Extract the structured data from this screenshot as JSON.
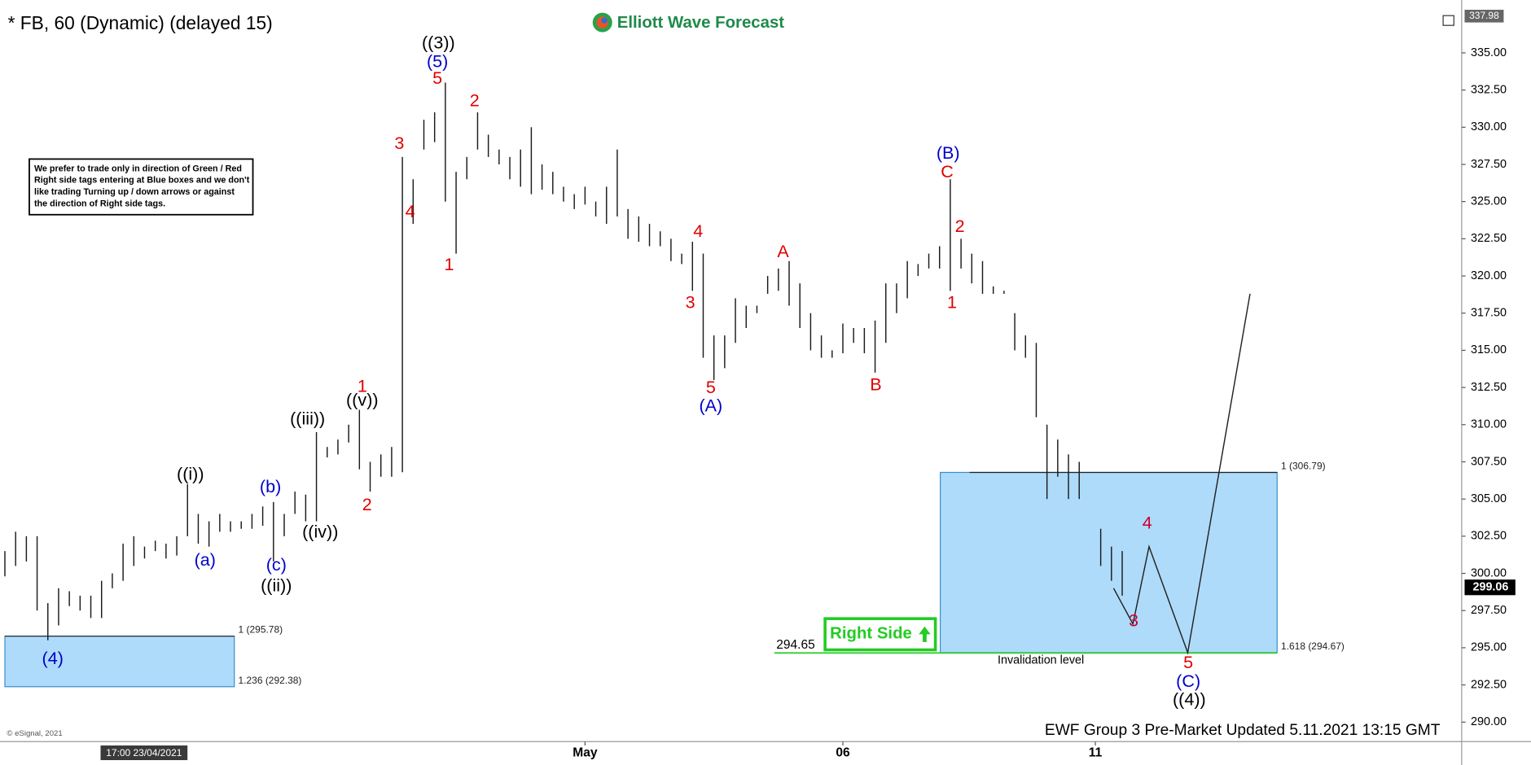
{
  "chart_data": {
    "type": "ohlc",
    "title": "* FB, 60 (Dynamic) (delayed 15)",
    "brand": "Elliott Wave Forecast",
    "footer": "EWF Group 3 Pre-Market Updated 5.11.2021 13:15 GMT",
    "copyright": "© eSignal, 2021",
    "cursor_time": "17:00 23/04/2021",
    "note": [
      "We prefer to trade only in direction of Green / Red",
      "Right side tags entering at Blue boxes and we don't",
      "like trading Turning up / down arrows or against",
      "the direction of Right side tags."
    ],
    "right_side_tag": "Right Side",
    "last_price": 299.06,
    "scale_high": 337.98,
    "bar_color": "#1a1a1a",
    "ylim": [
      288.69,
      338.03
    ],
    "yticks": [
      {
        "value": 290,
        "label": "290.00"
      },
      {
        "value": 292.5,
        "label": "292.50"
      },
      {
        "value": 295,
        "label": "295.00"
      },
      {
        "value": 297.5,
        "label": "297.50"
      },
      {
        "value": 300,
        "label": "300.00"
      },
      {
        "value": 302.5,
        "label": "302.50"
      },
      {
        "value": 305,
        "label": "305.00"
      },
      {
        "value": 307.5,
        "label": "307.50"
      },
      {
        "value": 310,
        "label": "310.00"
      },
      {
        "value": 312.5,
        "label": "312.50"
      },
      {
        "value": 315,
        "label": "315.00"
      },
      {
        "value": 317.5,
        "label": "317.50"
      },
      {
        "value": 320,
        "label": "320.00"
      },
      {
        "value": 322.5,
        "label": "322.50"
      },
      {
        "value": 325,
        "label": "325.00"
      },
      {
        "value": 327.5,
        "label": "327.50"
      },
      {
        "value": 330,
        "label": "330.00"
      },
      {
        "value": 332.5,
        "label": "332.50"
      },
      {
        "value": 335,
        "label": "335.00"
      }
    ],
    "xlim": [
      0,
      135.6
    ],
    "xticks": [
      {
        "value": 54,
        "label": "May"
      },
      {
        "value": 78,
        "label": "06"
      },
      {
        "value": 101.5,
        "label": "11"
      }
    ],
    "x": [
      0,
      1,
      2,
      3,
      4,
      5,
      6,
      7,
      8,
      9,
      10,
      11,
      12,
      13,
      14,
      15,
      16,
      17,
      18,
      19,
      20,
      21,
      22,
      23,
      24,
      25,
      26,
      27,
      28,
      29,
      30,
      31,
      32,
      33,
      34,
      35,
      36,
      37,
      38,
      39,
      40,
      41,
      42,
      43,
      44,
      45,
      46,
      47,
      48,
      49,
      50,
      51,
      52,
      53,
      54,
      55,
      56,
      57,
      58,
      59,
      60,
      61,
      62,
      63,
      64,
      65,
      66,
      67,
      68,
      69,
      70,
      71,
      72,
      73,
      74,
      75,
      76,
      77,
      78,
      79,
      80,
      81,
      82,
      83,
      84,
      85,
      86,
      87,
      88,
      89,
      90,
      91,
      92,
      93,
      94,
      95,
      96,
      97,
      98,
      99,
      100,
      102,
      103,
      104
    ],
    "high": [
      301.5,
      302.8,
      302.5,
      302.5,
      298,
      299,
      298.8,
      298.5,
      298.5,
      299.5,
      300,
      302,
      302.5,
      301.8,
      302.2,
      302,
      302.5,
      306,
      304,
      303.5,
      304,
      303.5,
      303.5,
      304,
      304.5,
      304.8,
      304,
      305.5,
      305.3,
      309.5,
      308.5,
      309,
      310,
      311,
      307.5,
      308,
      308.5,
      328,
      326.5,
      330.5,
      331,
      333,
      327,
      328,
      331,
      329.5,
      328.5,
      328,
      328.5,
      330,
      327.5,
      327,
      326,
      325.5,
      326,
      325,
      326,
      328.5,
      324.5,
      324,
      323.5,
      323,
      322.5,
      321.5,
      322.3,
      321.5,
      316,
      316,
      318.5,
      318,
      318,
      320,
      320.5,
      321,
      319.5,
      317.5,
      316,
      315,
      316.8,
      316.5,
      316.5,
      317,
      319.5,
      319.5,
      321,
      320.8,
      321.5,
      322,
      326.5,
      322.5,
      321.5,
      321,
      319.3,
      319,
      317.5,
      316,
      315.5,
      310,
      309,
      308,
      307.5,
      303,
      301.8,
      301.5
    ],
    "low": [
      299.8,
      300.5,
      300.8,
      297.5,
      295.5,
      296.5,
      297.8,
      297.5,
      297,
      297,
      299,
      299.5,
      300.5,
      301,
      301.5,
      301,
      301.2,
      302.5,
      302,
      301.8,
      302.8,
      302.8,
      303,
      303,
      303.2,
      300.8,
      302.5,
      304,
      303.5,
      303.5,
      307.8,
      308,
      308.8,
      307,
      305.5,
      306.5,
      306.5,
      306.8,
      323.5,
      328.5,
      329,
      325,
      321.5,
      326.5,
      328.5,
      328,
      327.5,
      326.5,
      326,
      325.5,
      325.8,
      325.5,
      325,
      324.5,
      324.8,
      324,
      323.5,
      324,
      322.5,
      322.3,
      322,
      322,
      321,
      320.8,
      319,
      314.5,
      313,
      313.8,
      315.5,
      316.5,
      317.5,
      318.8,
      319,
      318,
      316.5,
      315,
      314.5,
      314.5,
      314.8,
      315.5,
      314.8,
      313.5,
      315.5,
      317.5,
      318.5,
      320,
      320.5,
      320.5,
      319,
      320.5,
      319.5,
      318.8,
      318.8,
      318.8,
      315,
      314.5,
      310.5,
      305,
      306.5,
      305,
      305,
      300.5,
      299.5,
      298.5
    ],
    "projection": {
      "x": [
        103.2,
        105,
        106.5,
        110.1,
        115.9
      ],
      "y": [
        299,
        296.6,
        301.8,
        294.67,
        318.8
      ]
    },
    "boxes": [
      {
        "top": 295.78,
        "bottom": 292.38,
        "top_label": "1 (295.78)",
        "bottom_label": "1.236 (292.38)"
      },
      {
        "top": 306.79,
        "bottom": 294.67,
        "top_label": "1 (306.79)",
        "bottom_label": "1.618 (294.67)"
      }
    ],
    "invalidation": {
      "value": 294.65,
      "label": "Invalidation level"
    },
    "annotations": [
      {
        "text": "((3))",
        "color": "#000000"
      },
      {
        "text": "(5)",
        "color": "#0000cc"
      },
      {
        "text": "5",
        "color": "#e00000"
      },
      {
        "text": "2",
        "color": "#e00000"
      },
      {
        "text": "3",
        "color": "#e00000"
      },
      {
        "text": "4",
        "color": "#e00000"
      },
      {
        "text": "1",
        "color": "#e00000"
      },
      {
        "text": "4",
        "color": "#e00000"
      },
      {
        "text": "3",
        "color": "#e00000"
      },
      {
        "text": "5",
        "color": "#e00000"
      },
      {
        "text": "(A)",
        "color": "#0000cc"
      },
      {
        "text": "A",
        "color": "#e00000"
      },
      {
        "text": "B",
        "color": "#e00000"
      },
      {
        "text": "(B)",
        "color": "#0000cc"
      },
      {
        "text": "C",
        "color": "#e00000"
      },
      {
        "text": "2",
        "color": "#e00000"
      },
      {
        "text": "1",
        "color": "#e00000"
      },
      {
        "text": "1",
        "color": "#e00000"
      },
      {
        "text": "((v))",
        "color": "#000000"
      },
      {
        "text": "((iii))",
        "color": "#000000"
      },
      {
        "text": "2",
        "color": "#e00000"
      },
      {
        "text": "((iv))",
        "color": "#000000"
      },
      {
        "text": "((i))",
        "color": "#000000"
      },
      {
        "text": "(a)",
        "color": "#0000cc"
      },
      {
        "text": "(b)",
        "color": "#0000cc"
      },
      {
        "text": "(c)",
        "color": "#0000cc"
      },
      {
        "text": "((ii))",
        "color": "#000000"
      },
      {
        "text": "(4)",
        "color": "#0000cc"
      },
      {
        "text": "4",
        "color": "#cc0033"
      },
      {
        "text": "3",
        "color": "#cc0033"
      },
      {
        "text": "5",
        "color": "#e00000"
      },
      {
        "text": "(C)",
        "color": "#0000cc"
      },
      {
        "text": "((4))",
        "color": "#000000"
      }
    ]
  }
}
